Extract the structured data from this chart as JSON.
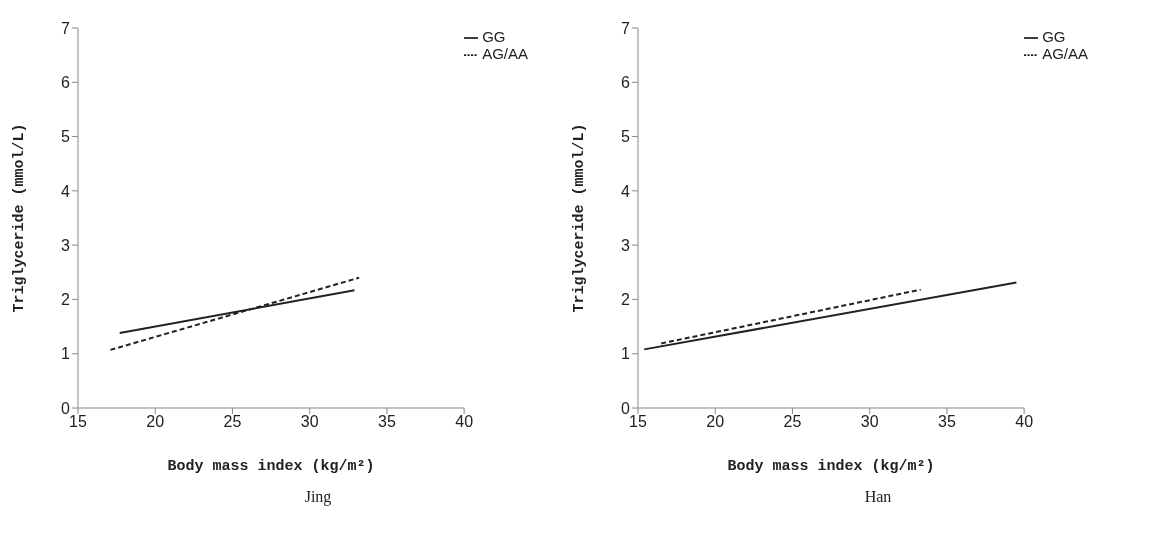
{
  "chart_data": [
    {
      "type": "line",
      "title": "Jing",
      "xlabel": "Body mass index (kg/m²)",
      "ylabel": "Triglyceride (mmol/L)",
      "xlim": [
        15,
        40
      ],
      "xticks": [
        15,
        20,
        25,
        30,
        35,
        40
      ],
      "ylim": [
        0,
        7
      ],
      "yticks": [
        0,
        1,
        2,
        3,
        4,
        5,
        6,
        7
      ],
      "legend": "top right",
      "series": [
        {
          "name": "GG",
          "color": "#222222",
          "line_style": "solid",
          "x": [
            17.7,
            32.9
          ],
          "values": [
            1.38,
            2.17
          ]
        },
        {
          "name": "AG/AA",
          "color": "#222222",
          "line_style": "dashed",
          "x": [
            17.1,
            33.2
          ],
          "values": [
            1.07,
            2.4
          ]
        }
      ]
    },
    {
      "type": "line",
      "title": "Han",
      "xlabel": "Body mass index (kg/m²)",
      "ylabel": "Triglyceride (mmol/L)",
      "xlim": [
        15,
        40
      ],
      "xticks": [
        15,
        20,
        25,
        30,
        35,
        40
      ],
      "ylim": [
        0,
        7
      ],
      "yticks": [
        0,
        1,
        2,
        3,
        4,
        5,
        6,
        7
      ],
      "legend": "top right",
      "series": [
        {
          "name": "GG",
          "color": "#222222",
          "line_style": "solid",
          "x": [
            15.4,
            39.5
          ],
          "values": [
            1.08,
            2.31
          ]
        },
        {
          "name": "AG/AA",
          "color": "#222222",
          "line_style": "dashed",
          "x": [
            16.5,
            33.3
          ],
          "values": [
            1.19,
            2.18
          ]
        }
      ]
    }
  ]
}
